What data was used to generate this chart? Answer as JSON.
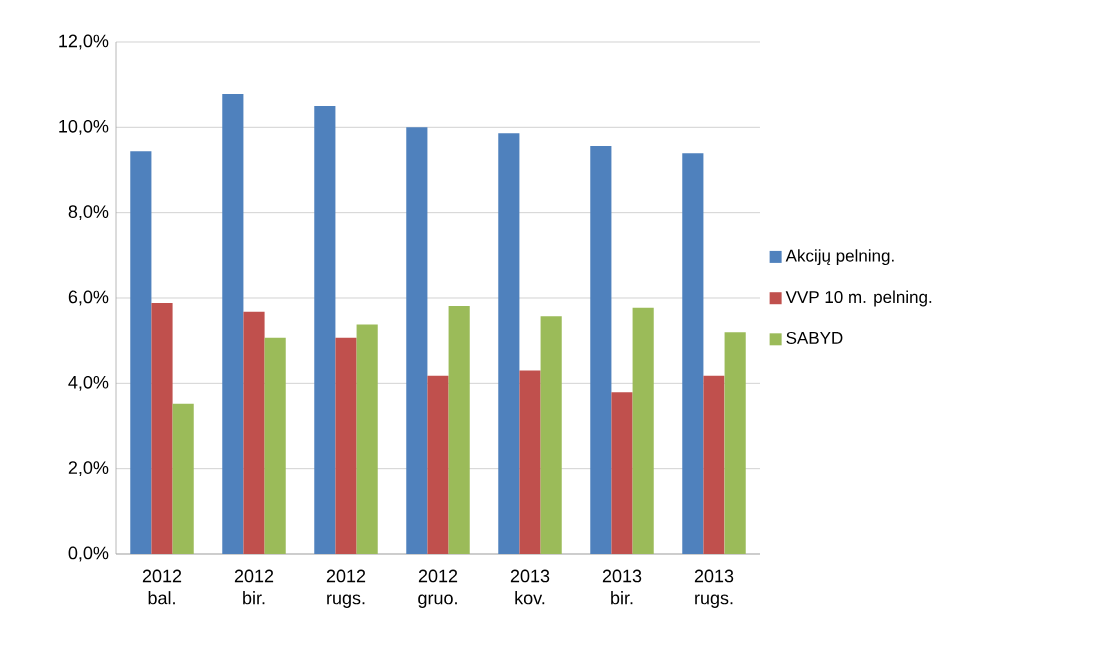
{
  "chart_data": {
    "type": "bar",
    "categories": [
      "2012 bal.",
      "2012 bir.",
      "2012 rugs.",
      "2012 gruo.",
      "2013 kov.",
      "2013 bir.",
      "2013 rugs."
    ],
    "series": [
      {
        "name": "Akcijų pelning.",
        "color": "#4f81bd",
        "values": [
          9.44,
          10.78,
          10.5,
          10.0,
          9.86,
          9.56,
          9.39
        ]
      },
      {
        "name": "VVP 10 m. pelning.",
        "color": "#c0504d",
        "values": [
          5.88,
          5.68,
          5.07,
          4.18,
          4.3,
          3.79,
          4.18
        ]
      },
      {
        "name": "SABYD",
        "color": "#9bbb59",
        "values": [
          3.52,
          5.07,
          5.38,
          5.81,
          5.57,
          5.77,
          5.2
        ]
      }
    ],
    "ylim": [
      0,
      12
    ],
    "yticks": [
      {
        "value": 0,
        "label": "0,0%"
      },
      {
        "value": 2,
        "label": "2,0%"
      },
      {
        "value": 4,
        "label": "4,0%"
      },
      {
        "value": 6,
        "label": "6,0%"
      },
      {
        "value": 8,
        "label": "8,0%"
      },
      {
        "value": 10,
        "label": "10,0%"
      },
      {
        "value": 12,
        "label": "12,0%"
      }
    ],
    "grid": "y",
    "legend": "right"
  }
}
